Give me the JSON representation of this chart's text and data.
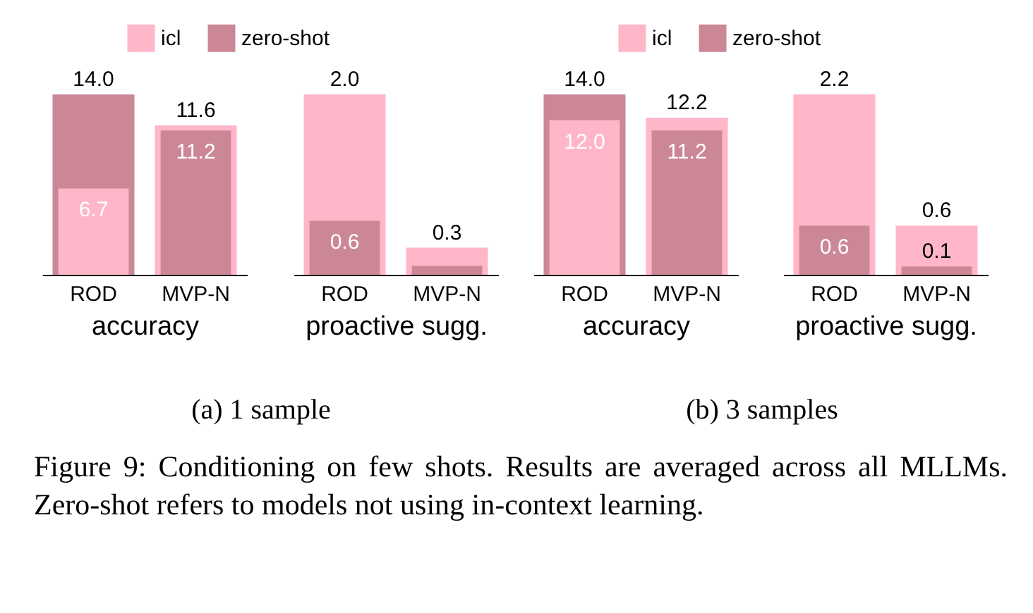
{
  "chart_data": [
    {
      "type": "bar",
      "categories": [
        "ROD",
        "MVP-N"
      ],
      "xlabel": "accuracy",
      "legend": "top",
      "annotations": [
        "(a) 1 sample"
      ],
      "series": [
        {
          "name": "icl",
          "color": "#ffb6c8",
          "values": [
            6.7,
            11.6
          ],
          "value_labels": [
            "6.7",
            "11.6"
          ]
        },
        {
          "name": "zero-shot",
          "color": "#cc8797",
          "values": [
            14.0,
            11.2
          ],
          "value_labels": [
            "14.0",
            "11.2"
          ]
        }
      ]
    },
    {
      "type": "bar",
      "categories": [
        "ROD",
        "MVP-N"
      ],
      "xlabel": "proactive sugg.",
      "series": [
        {
          "color": "#ffb6c8",
          "values": [
            2.0,
            0.3
          ],
          "value_labels": [
            "2.0",
            "0.3"
          ]
        },
        {
          "color": "#cc8797",
          "values": [
            0.6,
            0.1
          ],
          "value_labels": [
            "0.6",
            null
          ]
        }
      ]
    },
    {
      "type": "bar",
      "categories": [
        "ROD",
        "MVP-N"
      ],
      "xlabel": "accuracy",
      "legend": "top",
      "annotations": [
        "(b) 3 samples"
      ],
      "series": [
        {
          "name": "icl",
          "color": "#ffb6c8",
          "values": [
            12.0,
            12.2
          ],
          "value_labels": [
            "12.0",
            "12.2"
          ]
        },
        {
          "name": "zero-shot",
          "color": "#cc8797",
          "values": [
            14.0,
            11.2
          ],
          "value_labels": [
            "14.0",
            "11.2"
          ]
        }
      ]
    },
    {
      "type": "bar",
      "categories": [
        "ROD",
        "MVP-N"
      ],
      "xlabel": "proactive sugg.",
      "annotations": [
        "Figure 9: Conditioning on few shots. Results are averaged across all MLLMs. Zero-shot refers to models not using in-context learning."
      ],
      "series": [
        {
          "color": "#ffb6c8",
          "values": [
            2.2,
            0.6
          ],
          "value_labels": [
            "2.2",
            "0.6"
          ]
        },
        {
          "color": "#cc8797",
          "values": [
            0.6,
            0.1
          ],
          "value_labels": [
            "0.6",
            "0.1"
          ]
        }
      ]
    }
  ]
}
